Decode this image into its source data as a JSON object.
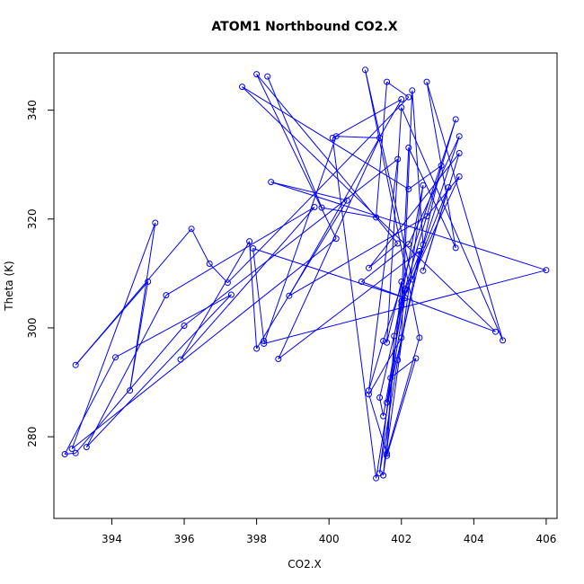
{
  "chart_data": {
    "type": "line",
    "title": "ATOM1 Northbound CO2.X",
    "xlabel": "CO2.X",
    "ylabel": "Theta (K)",
    "xlim": [
      392.4,
      406.3
    ],
    "ylim": [
      265.0,
      350.5
    ],
    "xticks": [
      394,
      396,
      398,
      400,
      402,
      404,
      406
    ],
    "yticks": [
      280,
      300,
      320,
      340
    ],
    "grid": false,
    "legend": "none",
    "line_color": "#0000ff",
    "marker": "open-circle",
    "points": [
      [
        398.3,
        346.2
      ],
      [
        399.8,
        322.1
      ],
      [
        401.3,
        320.3
      ],
      [
        401.6,
        345.2
      ],
      [
        402.2,
        342.4
      ],
      [
        397.2,
        308.3
      ],
      [
        396.7,
        311.8
      ],
      [
        396.2,
        318.2
      ],
      [
        393.0,
        293.2
      ],
      [
        395.0,
        308.5
      ],
      [
        394.5,
        288.5
      ],
      [
        395.2,
        319.3
      ],
      [
        392.9,
        277.8
      ],
      [
        400.2,
        316.4
      ],
      [
        398.0,
        346.6
      ],
      [
        401.9,
        315.5
      ],
      [
        401.1,
        311.0
      ],
      [
        403.6,
        332.1
      ],
      [
        402.6,
        310.5
      ],
      [
        403.3,
        325.8
      ],
      [
        402.0,
        304.2
      ],
      [
        401.6,
        286.3
      ],
      [
        403.1,
        329.8
      ],
      [
        402.2,
        325.5
      ],
      [
        397.6,
        344.3
      ],
      [
        404.6,
        299.3
      ],
      [
        400.9,
        308.5
      ],
      [
        402.2,
        315.4
      ],
      [
        403.6,
        335.2
      ],
      [
        402.3,
        308.9
      ],
      [
        401.0,
        347.4
      ],
      [
        402.5,
        298.2
      ],
      [
        401.6,
        276.9
      ],
      [
        401.1,
        287.8
      ],
      [
        402.0,
        298.2
      ],
      [
        402.3,
        343.6
      ],
      [
        402.6,
        315.3
      ],
      [
        402.1,
        306.9
      ],
      [
        401.5,
        283.8
      ],
      [
        401.4,
        287.2
      ],
      [
        402.1,
        307.2
      ],
      [
        403.5,
        338.3
      ],
      [
        401.5,
        297.6
      ],
      [
        401.1,
        288.5
      ],
      [
        401.9,
        331.0
      ],
      [
        396.0,
        300.4
      ],
      [
        393.0,
        277.0
      ],
      [
        392.7,
        276.8
      ],
      [
        394.1,
        294.6
      ],
      [
        397.3,
        306.1
      ],
      [
        393.3,
        278.1
      ],
      [
        395.5,
        306.0
      ],
      [
        399.6,
        322.2
      ],
      [
        395.9,
        294.2
      ],
      [
        397.8,
        315.9
      ],
      [
        398.0,
        296.2
      ],
      [
        400.5,
        323.4
      ],
      [
        398.4,
        326.8
      ],
      [
        406.0,
        310.6
      ],
      [
        398.2,
        297.1
      ],
      [
        400.2,
        335.2
      ],
      [
        401.4,
        334.9
      ],
      [
        398.6,
        294.3
      ],
      [
        402.5,
        314.1
      ],
      [
        401.9,
        294.1
      ],
      [
        401.4,
        273.3
      ],
      [
        401.7,
        290.8
      ],
      [
        402.4,
        294.4
      ],
      [
        401.6,
        276.5
      ],
      [
        401.8,
        298.5
      ],
      [
        402.6,
        326.2
      ],
      [
        401.5,
        272.9
      ],
      [
        402.0,
        308.5
      ],
      [
        401.6,
        297.3
      ],
      [
        402.0,
        340.5
      ],
      [
        404.8,
        297.7
      ],
      [
        402.7,
        345.2
      ],
      [
        403.5,
        314.7
      ],
      [
        402.2,
        333.1
      ],
      [
        402.0,
        304.9
      ],
      [
        403.6,
        327.8
      ],
      [
        402.7,
        320.5
      ],
      [
        398.9,
        305.9
      ],
      [
        402.0,
        342.0
      ],
      [
        400.1,
        334.9
      ],
      [
        401.3,
        272.4
      ],
      [
        402.1,
        305.5
      ],
      [
        397.9,
        314.6
      ],
      [
        398.2,
        297.6
      ]
    ]
  }
}
